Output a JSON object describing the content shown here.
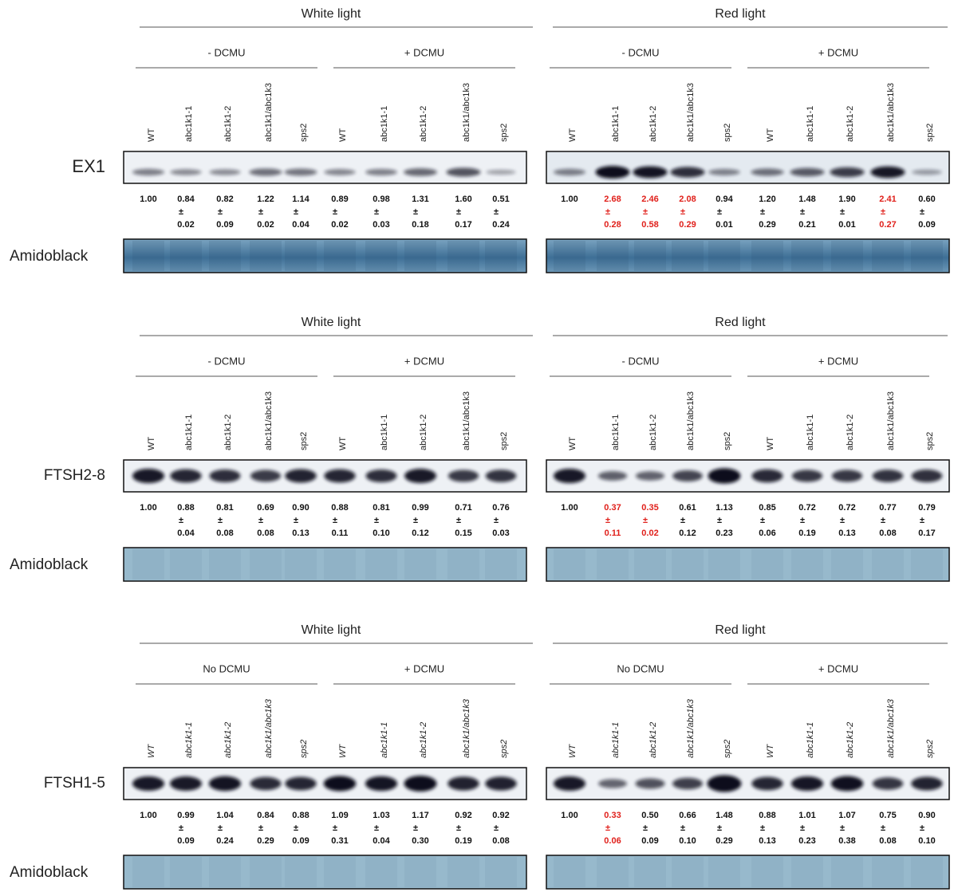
{
  "plus_minus": "±",
  "panels": [
    {
      "target": "EX1",
      "loading": "Amidoblack",
      "italic_lanes": false,
      "lanes": [
        "WT",
        "abc1k1-1",
        "abc1k1-2",
        "abc1k1/abc1k3",
        "sps2"
      ],
      "halves": [
        {
          "title": "White light",
          "conditions": [
            "- DCMU",
            "+ DCMU"
          ],
          "quant": [
            {
              "mean": "1.00"
            },
            {
              "mean": "0.84",
              "sd": "0.02"
            },
            {
              "mean": "0.82",
              "sd": "0.09"
            },
            {
              "mean": "1.22",
              "sd": "0.02"
            },
            {
              "mean": "1.14",
              "sd": "0.04"
            },
            {
              "mean": "0.89",
              "sd": "0.02"
            },
            {
              "mean": "0.98",
              "sd": "0.03"
            },
            {
              "mean": "1.31",
              "sd": "0.18"
            },
            {
              "mean": "1.60",
              "sd": "0.17"
            },
            {
              "mean": "0.51",
              "sd": "0.24"
            }
          ]
        },
        {
          "title": "Red light",
          "conditions": [
            "- DCMU",
            "+ DCMU"
          ],
          "quant": [
            {
              "mean": "1.00"
            },
            {
              "mean": "2.68",
              "sd": "0.28",
              "red": true
            },
            {
              "mean": "2.46",
              "sd": "0.58",
              "red": true
            },
            {
              "mean": "2.08",
              "sd": "0.29",
              "red": true
            },
            {
              "mean": "0.94",
              "sd": "0.01"
            },
            {
              "mean": "1.20",
              "sd": "0.29"
            },
            {
              "mean": "1.48",
              "sd": "0.21"
            },
            {
              "mean": "1.90",
              "sd": "0.01"
            },
            {
              "mean": "2.41",
              "sd": "0.27",
              "red": true
            },
            {
              "mean": "0.60",
              "sd": "0.09"
            }
          ]
        }
      ]
    },
    {
      "target": "FTSH2-8",
      "loading": "Amidoblack",
      "italic_lanes": false,
      "lanes": [
        "WT",
        "abc1k1-1",
        "abc1k1-2",
        "abc1k1/abc1k3",
        "sps2"
      ],
      "halves": [
        {
          "title": "White light",
          "conditions": [
            "- DCMU",
            "+ DCMU"
          ],
          "quant": [
            {
              "mean": "1.00"
            },
            {
              "mean": "0.88",
              "sd": "0.04"
            },
            {
              "mean": "0.81",
              "sd": "0.08"
            },
            {
              "mean": "0.69",
              "sd": "0.08"
            },
            {
              "mean": "0.90",
              "sd": "0.13"
            },
            {
              "mean": "0.88",
              "sd": "0.11"
            },
            {
              "mean": "0.81",
              "sd": "0.10"
            },
            {
              "mean": "0.99",
              "sd": "0.12"
            },
            {
              "mean": "0.71",
              "sd": "0.15"
            },
            {
              "mean": "0.76",
              "sd": "0.03"
            }
          ]
        },
        {
          "title": "Red light",
          "conditions": [
            "- DCMU",
            "+ DCMU"
          ],
          "quant": [
            {
              "mean": "1.00"
            },
            {
              "mean": "0.37",
              "sd": "0.11",
              "red": true
            },
            {
              "mean": "0.35",
              "sd": "0.02",
              "red": true
            },
            {
              "mean": "0.61",
              "sd": "0.12"
            },
            {
              "mean": "1.13",
              "sd": "0.23"
            },
            {
              "mean": "0.85",
              "sd": "0.06"
            },
            {
              "mean": "0.72",
              "sd": "0.19"
            },
            {
              "mean": "0.72",
              "sd": "0.13"
            },
            {
              "mean": "0.77",
              "sd": "0.08"
            },
            {
              "mean": "0.79",
              "sd": "0.17"
            }
          ]
        }
      ]
    },
    {
      "target": "FTSH1-5",
      "loading": "Amidoblack",
      "italic_lanes": true,
      "lanes": [
        "WT",
        "abc1k1-1",
        "abc1k1-2",
        "abc1k1/abc1k3",
        "sps2"
      ],
      "halves": [
        {
          "title": "White light",
          "conditions": [
            "No DCMU",
            "+ DCMU"
          ],
          "quant": [
            {
              "mean": "1.00"
            },
            {
              "mean": "0.99",
              "sd": "0.09"
            },
            {
              "mean": "1.04",
              "sd": "0.24"
            },
            {
              "mean": "0.84",
              "sd": "0.29"
            },
            {
              "mean": "0.88",
              "sd": "0.09"
            },
            {
              "mean": "1.09",
              "sd": "0.31"
            },
            {
              "mean": "1.03",
              "sd": "0.04"
            },
            {
              "mean": "1.17",
              "sd": "0.30"
            },
            {
              "mean": "0.92",
              "sd": "0.19"
            },
            {
              "mean": "0.92",
              "sd": "0.08"
            }
          ]
        },
        {
          "title": "Red light",
          "conditions": [
            "No DCMU",
            "+ DCMU"
          ],
          "quant": [
            {
              "mean": "1.00"
            },
            {
              "mean": "0.33",
              "sd": "0.06",
              "red": true
            },
            {
              "mean": "0.50",
              "sd": "0.09"
            },
            {
              "mean": "0.66",
              "sd": "0.10"
            },
            {
              "mean": "1.48",
              "sd": "0.29"
            },
            {
              "mean": "0.88",
              "sd": "0.13"
            },
            {
              "mean": "1.01",
              "sd": "0.23"
            },
            {
              "mean": "1.07",
              "sd": "0.38"
            },
            {
              "mean": "0.75",
              "sd": "0.08"
            },
            {
              "mean": "0.90",
              "sd": "0.10"
            }
          ]
        }
      ]
    }
  ]
}
